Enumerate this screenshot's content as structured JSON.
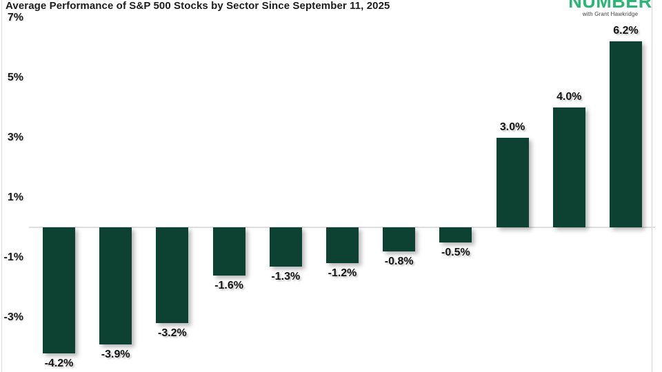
{
  "header": {
    "title": "Average Performance of S&P 500 Stocks by Sector Since September 11, 2025"
  },
  "logo": {
    "wordmark": "NUMBER",
    "tagline": "with Grant Hawkridge",
    "wordmark_color": "#2bb673"
  },
  "chart_data": {
    "type": "bar",
    "title": "Average Performance of S&P 500 Stocks by Sector Since September 11, 2025",
    "values": [
      -4.2,
      -3.9,
      -3.2,
      -1.6,
      -1.3,
      -1.2,
      -0.8,
      -0.5,
      3.0,
      4.0,
      6.2
    ],
    "bar_labels": [
      "-4.2%",
      "-3.9%",
      "-3.2%",
      "-1.6%",
      "-1.3%",
      "-1.2%",
      "-0.8%",
      "-0.5%",
      "3.0%",
      "4.0%",
      "6.2%"
    ],
    "y_ticks": [
      "7%",
      "5%",
      "3%",
      "1%",
      "-1%",
      "-3%"
    ],
    "y_tick_values": [
      7,
      5,
      3,
      1,
      -1,
      -3
    ],
    "ylim": [
      -4.8,
      7.6
    ],
    "xlabel": "",
    "ylabel": "",
    "bar_color": "#0d4232",
    "grid": "zero-line-only",
    "legend": "none",
    "note": "category labels cropped out of view"
  }
}
